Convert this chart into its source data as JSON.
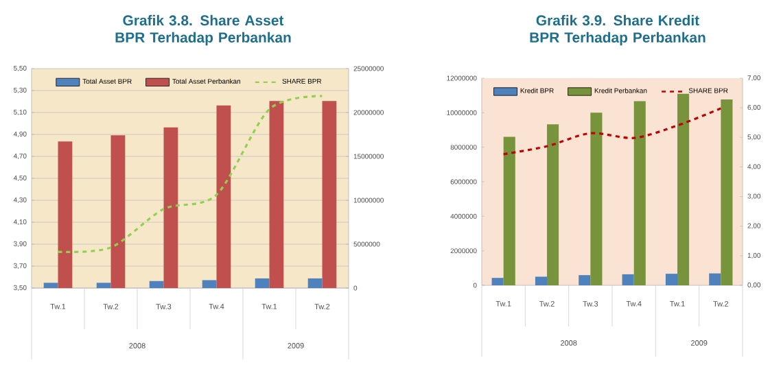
{
  "chart_data": [
    {
      "type": "bar",
      "title": "Grafik 3.8. Share Asset BPR Terhadap Perbankan",
      "categories": [
        "Tw.1",
        "Tw.2",
        "Tw.3",
        "Tw.4",
        "Tw.1",
        "Tw.2"
      ],
      "series": [
        {
          "name": "Total Asset BPR",
          "color": "#4f81bd",
          "axis": "y2",
          "values": [
            600000,
            600000,
            800000,
            900000,
            1100000,
            1100000
          ]
        },
        {
          "name": "Total Asset Perbankan",
          "color": "#c0504d",
          "axis": "y2",
          "values": [
            16700000,
            17400000,
            18300000,
            20800000,
            21300000,
            21300000
          ]
        },
        {
          "name": "SHARE BPR",
          "type": "line",
          "color": "#92d050",
          "line_style": "dashed",
          "axis": "y",
          "values": [
            3.83,
            3.87,
            4.22,
            4.35,
            5.13,
            5.25
          ]
        }
      ],
      "ylim": [
        3.5,
        5.5
      ],
      "yticks": [
        {
          "value": 3.5,
          "label": "3,50"
        },
        {
          "value": 3.7,
          "label": "3,70"
        },
        {
          "value": 3.9,
          "label": "3,90"
        },
        {
          "value": 4.1,
          "label": "4,10"
        },
        {
          "value": 4.3,
          "label": "4,30"
        },
        {
          "value": 4.5,
          "label": "4,50"
        },
        {
          "value": 4.7,
          "label": "4,70"
        },
        {
          "value": 4.9,
          "label": "4,90"
        },
        {
          "value": 5.1,
          "label": "5,10"
        },
        {
          "value": 5.3,
          "label": "5,30"
        },
        {
          "value": 5.5,
          "label": "5,50"
        }
      ],
      "y2lim": [
        0,
        25000000
      ],
      "y2ticks": [
        0,
        5000000,
        10000000,
        15000000,
        20000000,
        25000000
      ],
      "grid": "y",
      "legend": "top",
      "annotations": [
        "2008",
        "2009"
      ]
    },
    {
      "type": "bar",
      "title": "Grafik 3.9. Share Kredit BPR Terhadap Perbankan",
      "categories": [
        "Tw.1",
        "Tw.2",
        "Tw.3",
        "Tw.4",
        "Tw.1",
        "Tw.2"
      ],
      "series": [
        {
          "name": "Kredit BPR",
          "color": "#4f81bd",
          "axis": "y",
          "values": [
            430000,
            500000,
            590000,
            640000,
            670000,
            690000
          ]
        },
        {
          "name": "Kredit Perbankan",
          "color": "#77933c",
          "axis": "y",
          "values": [
            8600000,
            9330000,
            10000000,
            10670000,
            11100000,
            10770000
          ]
        },
        {
          "name": "SHARE BPR",
          "type": "line",
          "color": "#c00000",
          "line_style": "dashed",
          "axis": "y2",
          "values": [
            4.43,
            4.7,
            5.14,
            4.98,
            5.4,
            5.98
          ]
        }
      ],
      "ylim": [
        0,
        12000000
      ],
      "yticks": [
        0,
        2000000,
        4000000,
        6000000,
        8000000,
        10000000,
        12000000
      ],
      "y2lim": [
        0,
        7
      ],
      "y2ticks": [
        {
          "value": 0,
          "label": "0,00"
        },
        {
          "value": 1,
          "label": "1,00"
        },
        {
          "value": 2,
          "label": "2,00"
        },
        {
          "value": 3,
          "label": "3,00"
        },
        {
          "value": 4,
          "label": "4,00"
        },
        {
          "value": 5,
          "label": "5,00"
        },
        {
          "value": 6,
          "label": "6,00"
        },
        {
          "value": 7,
          "label": "7,00"
        }
      ],
      "legend": "top",
      "annotations": [
        "2008",
        "2009"
      ]
    }
  ]
}
